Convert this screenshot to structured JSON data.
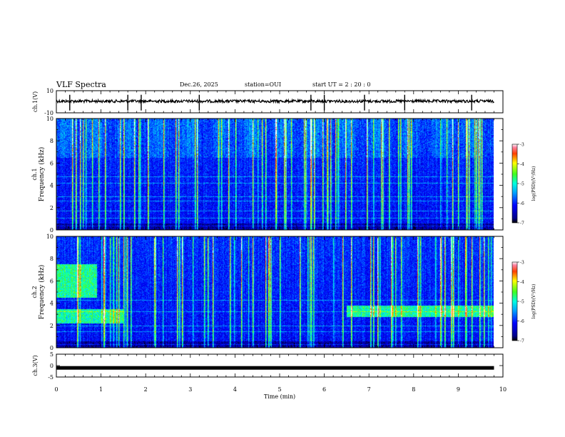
{
  "header": {
    "title": "VLF Spectra",
    "date": "Dec.26, 2025",
    "station": "station=OUI",
    "start_ut": "start  UT =   2 : 20 : 0"
  },
  "chart_data": {
    "type": "heatmap",
    "title": "VLF Spectra",
    "xlabel": "Time  (min)",
    "xlim": [
      0,
      10
    ],
    "x_ticks": [
      "0",
      "1",
      "2",
      "3",
      "4",
      "5",
      "6",
      "7",
      "8",
      "9",
      "10"
    ],
    "data_end_min": 9.8,
    "panels": [
      {
        "id": "ch1-waveform",
        "type": "line",
        "ylabel": "ch.1(V)",
        "ylim": [
          -10,
          10
        ],
        "y_ticks": [
          "10",
          "-10"
        ],
        "baseline_v": 0.5,
        "spike_times_min": [
          0.3,
          1.6,
          1.9,
          3.2,
          5.7,
          6.0,
          6.9,
          7.8,
          9.3
        ]
      },
      {
        "id": "ch1-spectrogram",
        "type": "heatmap",
        "ylabel": "ch.1",
        "ylabel2": "Frequency (kHz)",
        "ylim": [
          0,
          10
        ],
        "y_ticks": [
          "0",
          "2",
          "4",
          "6",
          "8",
          "10"
        ],
        "colorbar": {
          "min": -7,
          "max": -3,
          "ticks": [
            "-3",
            "-4",
            "-5",
            "-6",
            "-7"
          ],
          "label": "log(PSD)(V²/Hz)"
        },
        "sferic_times_min": [
          1.5,
          1.75,
          2.4,
          3.1,
          3.7,
          4.4,
          4.6,
          5.1,
          5.6,
          6.3,
          7.1,
          7.3,
          7.9,
          8.6,
          9.0,
          9.5
        ],
        "hiss_bands_khz": [
          [
            6.5,
            10
          ]
        ],
        "line_frequencies_khz": [
          0.4,
          1.1,
          1.7,
          2.6,
          3.0,
          4.2,
          4.8
        ]
      },
      {
        "id": "ch2-spectrogram",
        "type": "heatmap",
        "ylabel": "ch.2",
        "ylabel2": "Frequency (kHz)",
        "ylim": [
          0,
          10
        ],
        "y_ticks": [
          "0",
          "2",
          "4",
          "6",
          "8",
          "10"
        ],
        "colorbar": {
          "min": -7,
          "max": -3,
          "ticks": [
            "-3",
            "-4",
            "-5",
            "-6",
            "-7"
          ],
          "label": "log(PSD)(V²/Hz)"
        },
        "sferic_times_min": [
          1.0,
          1.55,
          2.2,
          3.05,
          3.5,
          4.4,
          4.75,
          5.0,
          5.7,
          6.6,
          7.25,
          7.6,
          8.1,
          8.7,
          9.3
        ],
        "emission_bands": [
          {
            "t0_min": 0.0,
            "t1_min": 0.9,
            "f0_khz": 4.5,
            "f1_khz": 7.5
          },
          {
            "t0_min": 0.0,
            "t1_min": 1.5,
            "f0_khz": 2.2,
            "f1_khz": 3.5
          },
          {
            "t0_min": 6.5,
            "t1_min": 9.8,
            "f0_khz": 2.8,
            "f1_khz": 3.8
          }
        ],
        "line_frequencies_khz": [
          0.3,
          1.5,
          2.0,
          3.3,
          4.3
        ]
      },
      {
        "id": "ch3-waveform",
        "type": "line",
        "ylabel": "ch.3(V)",
        "ylim": [
          -5,
          5
        ],
        "y_ticks": [
          "5",
          "0",
          "-5"
        ],
        "baseline_v": -1.0
      }
    ]
  }
}
